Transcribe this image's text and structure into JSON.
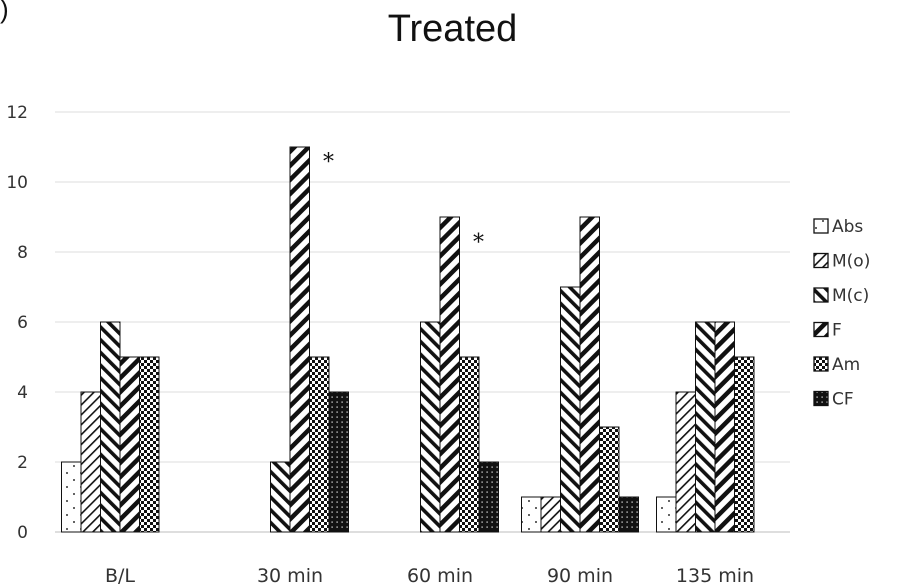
{
  "panel_letter": ")",
  "chart_data": {
    "type": "bar",
    "title": "Treated",
    "categories": [
      "B/L",
      "30 min",
      "60 min",
      "90 min",
      "135 min"
    ],
    "ylim": [
      0,
      12
    ],
    "yticks": [
      "0",
      "2",
      "4",
      "6",
      "8",
      "10",
      "12"
    ],
    "grid": true,
    "legend_position": "right",
    "series": [
      {
        "name": "Abs",
        "values": [
          2,
          0,
          0,
          1,
          1
        ]
      },
      {
        "name": "M(o)",
        "values": [
          4,
          0,
          0,
          1,
          4
        ]
      },
      {
        "name": "M(c)",
        "values": [
          6,
          2,
          6,
          7,
          6
        ]
      },
      {
        "name": "F",
        "values": [
          5,
          11,
          9,
          9,
          6
        ]
      },
      {
        "name": "Am",
        "values": [
          5,
          5,
          5,
          3,
          5
        ]
      },
      {
        "name": "CF",
        "values": [
          0,
          4,
          2,
          1,
          0
        ]
      }
    ],
    "annotations": [
      {
        "text": "*",
        "category": "30 min",
        "value": 11.0
      },
      {
        "text": "*",
        "category": "60 min",
        "value": 8.7
      }
    ]
  }
}
